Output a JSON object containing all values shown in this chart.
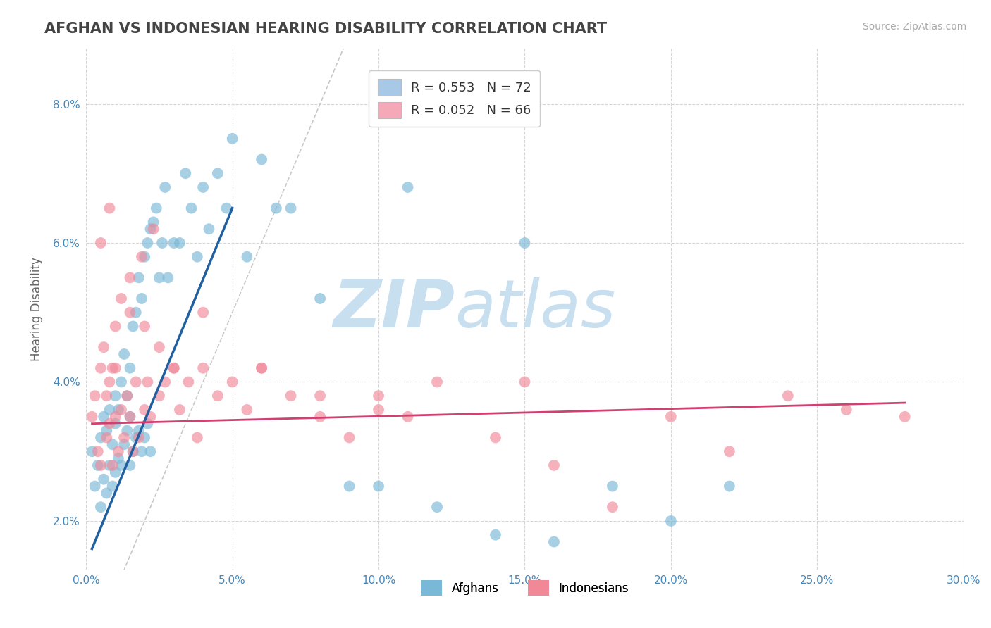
{
  "title": "AFGHAN VS INDONESIAN HEARING DISABILITY CORRELATION CHART",
  "source": "Source: ZipAtlas.com",
  "ylabel": "Hearing Disability",
  "xlim": [
    0.0,
    0.3
  ],
  "ylim": [
    0.013,
    0.088
  ],
  "xticks": [
    0.0,
    0.05,
    0.1,
    0.15,
    0.2,
    0.25,
    0.3
  ],
  "yticks": [
    0.02,
    0.04,
    0.06,
    0.08
  ],
  "xtick_labels": [
    "0.0%",
    "5.0%",
    "10.0%",
    "15.0%",
    "20.0%",
    "25.0%",
    "30.0%"
  ],
  "ytick_labels": [
    "2.0%",
    "4.0%",
    "6.0%",
    "8.0%"
  ],
  "legend_entries": [
    {
      "label": "R = 0.553   N = 72",
      "color": "#a8c8e8"
    },
    {
      "label": "R = 0.052   N = 66",
      "color": "#f4a8b8"
    }
  ],
  "legend_bottom": [
    "Afghans",
    "Indonesians"
  ],
  "afghan_color": "#7ab8d8",
  "indonesian_color": "#f08898",
  "afghan_alpha": 0.65,
  "indonesian_alpha": 0.65,
  "trend_afghan_color": "#2060a0",
  "trend_indonesian_color": "#d04070",
  "ref_line_color": "#bbbbbb",
  "background_color": "#ffffff",
  "grid_color": "#cccccc",
  "title_color": "#444444",
  "source_color": "#aaaaaa",
  "watermark_color": "#c8dff0",
  "afghan_x": [
    0.002,
    0.003,
    0.004,
    0.005,
    0.005,
    0.006,
    0.006,
    0.007,
    0.007,
    0.008,
    0.008,
    0.009,
    0.009,
    0.01,
    0.01,
    0.01,
    0.011,
    0.011,
    0.012,
    0.012,
    0.013,
    0.013,
    0.014,
    0.014,
    0.015,
    0.015,
    0.015,
    0.016,
    0.016,
    0.017,
    0.017,
    0.018,
    0.018,
    0.019,
    0.019,
    0.02,
    0.02,
    0.021,
    0.021,
    0.022,
    0.022,
    0.023,
    0.024,
    0.025,
    0.026,
    0.027,
    0.028,
    0.03,
    0.032,
    0.034,
    0.036,
    0.038,
    0.04,
    0.042,
    0.045,
    0.048,
    0.05,
    0.055,
    0.06,
    0.065,
    0.07,
    0.08,
    0.09,
    0.1,
    0.11,
    0.12,
    0.14,
    0.15,
    0.16,
    0.18,
    0.2,
    0.22
  ],
  "afghan_y": [
    0.03,
    0.025,
    0.028,
    0.022,
    0.032,
    0.026,
    0.035,
    0.024,
    0.033,
    0.028,
    0.036,
    0.025,
    0.031,
    0.027,
    0.034,
    0.038,
    0.029,
    0.036,
    0.028,
    0.04,
    0.031,
    0.044,
    0.033,
    0.038,
    0.028,
    0.035,
    0.042,
    0.03,
    0.048,
    0.032,
    0.05,
    0.033,
    0.055,
    0.03,
    0.052,
    0.032,
    0.058,
    0.034,
    0.06,
    0.03,
    0.062,
    0.063,
    0.065,
    0.055,
    0.06,
    0.068,
    0.055,
    0.06,
    0.06,
    0.07,
    0.065,
    0.058,
    0.068,
    0.062,
    0.07,
    0.065,
    0.075,
    0.058,
    0.072,
    0.065,
    0.065,
    0.052,
    0.025,
    0.025,
    0.068,
    0.022,
    0.018,
    0.06,
    0.017,
    0.025,
    0.02,
    0.025
  ],
  "indonesian_x": [
    0.002,
    0.003,
    0.004,
    0.005,
    0.005,
    0.006,
    0.007,
    0.007,
    0.008,
    0.008,
    0.009,
    0.009,
    0.01,
    0.01,
    0.011,
    0.012,
    0.012,
    0.013,
    0.014,
    0.015,
    0.015,
    0.016,
    0.017,
    0.018,
    0.019,
    0.02,
    0.021,
    0.022,
    0.023,
    0.025,
    0.027,
    0.03,
    0.032,
    0.035,
    0.038,
    0.04,
    0.045,
    0.05,
    0.055,
    0.06,
    0.07,
    0.08,
    0.09,
    0.1,
    0.11,
    0.12,
    0.14,
    0.16,
    0.18,
    0.2,
    0.22,
    0.24,
    0.26,
    0.28,
    0.005,
    0.008,
    0.01,
    0.015,
    0.02,
    0.025,
    0.03,
    0.04,
    0.06,
    0.08,
    0.1,
    0.15
  ],
  "indonesian_y": [
    0.035,
    0.038,
    0.03,
    0.042,
    0.028,
    0.045,
    0.032,
    0.038,
    0.034,
    0.04,
    0.028,
    0.042,
    0.035,
    0.048,
    0.03,
    0.036,
    0.052,
    0.032,
    0.038,
    0.035,
    0.055,
    0.03,
    0.04,
    0.032,
    0.058,
    0.036,
    0.04,
    0.035,
    0.062,
    0.038,
    0.04,
    0.042,
    0.036,
    0.04,
    0.032,
    0.042,
    0.038,
    0.04,
    0.036,
    0.042,
    0.038,
    0.035,
    0.032,
    0.038,
    0.035,
    0.04,
    0.032,
    0.028,
    0.022,
    0.035,
    0.03,
    0.038,
    0.036,
    0.035,
    0.06,
    0.065,
    0.042,
    0.05,
    0.048,
    0.045,
    0.042,
    0.05,
    0.042,
    0.038,
    0.036,
    0.04
  ],
  "afghan_trend_x": [
    0.002,
    0.05
  ],
  "afghan_trend_y": [
    0.016,
    0.065
  ],
  "indonesian_trend_x": [
    0.002,
    0.28
  ],
  "indonesian_trend_y": [
    0.034,
    0.037
  ]
}
